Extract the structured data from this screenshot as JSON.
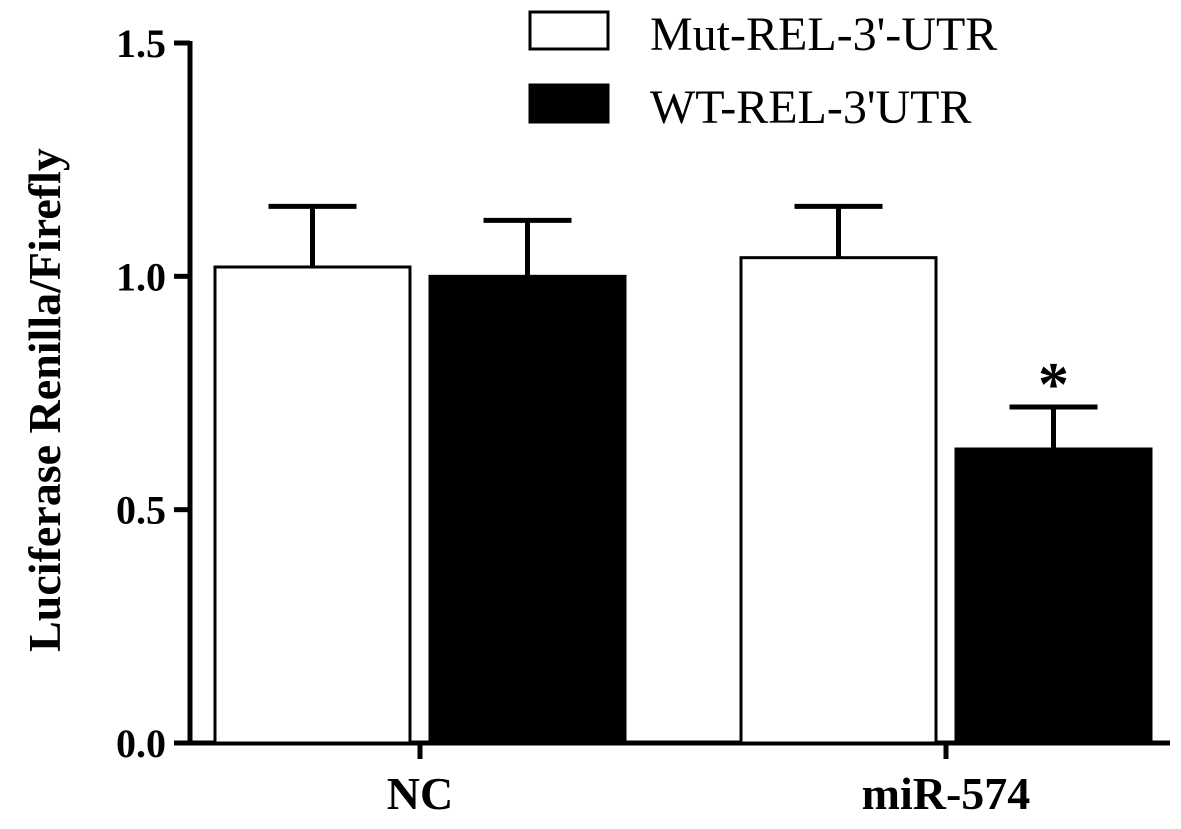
{
  "chart_data": {
    "type": "bar",
    "categories": [
      "NC",
      "miR-574"
    ],
    "series": [
      {
        "name": "Mut-REL-3'-UTR",
        "values": [
          1.02,
          1.04
        ],
        "errors": [
          0.13,
          0.11
        ],
        "fill": "#ffffff"
      },
      {
        "name": "WT-REL-3'UTR",
        "values": [
          1.0,
          0.63
        ],
        "errors": [
          0.12,
          0.09
        ],
        "fill": "#000000"
      }
    ],
    "xlabel": "",
    "ylabel": "Luciferase Renilla/Firefly",
    "ylim": [
      0,
      1.5
    ],
    "yticks": [
      "0.0",
      "0.5",
      "1.0",
      "1.5"
    ],
    "grid": false,
    "legend_position": "top-right",
    "annotations": [
      {
        "text": "*",
        "category": "miR-574",
        "series": "WT-REL-3'UTR"
      }
    ]
  }
}
